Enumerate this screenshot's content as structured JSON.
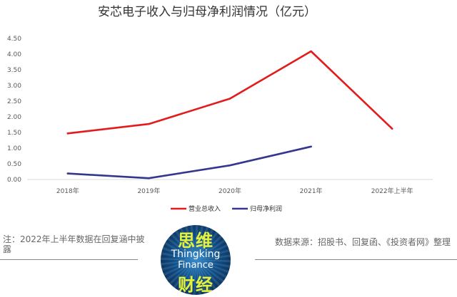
{
  "chart_data": {
    "type": "line",
    "title": "安芯电子收入与归母净利润情况（亿元）",
    "categories": [
      "2018年",
      "2019年",
      "2020年",
      "2021年",
      "2022年上半年"
    ],
    "y_ticks": [
      "0.00",
      "0.50",
      "1.00",
      "1.50",
      "2.00",
      "2.50",
      "3.00",
      "3.50",
      "4.00",
      "4.50"
    ],
    "ylim": [
      0,
      4.5
    ],
    "grid": false,
    "legend_position": "bottom",
    "series": [
      {
        "name": "营业总收入",
        "color": "#e31b1b",
        "values": [
          1.47,
          1.77,
          2.58,
          4.09,
          1.62
        ]
      },
      {
        "name": "归母净利润",
        "color": "#35378f",
        "values": [
          0.19,
          0.04,
          0.45,
          1.05,
          null
        ]
      }
    ]
  },
  "footer": {
    "note_left": "注：2022年上半年数据在回复涵中披露",
    "note_right": "数据来源：招股书、回复函、《投资者网》整理"
  },
  "logo": {
    "line1": "思维",
    "line2": "Thingking",
    "line3": "Finance",
    "line4": "财经"
  }
}
